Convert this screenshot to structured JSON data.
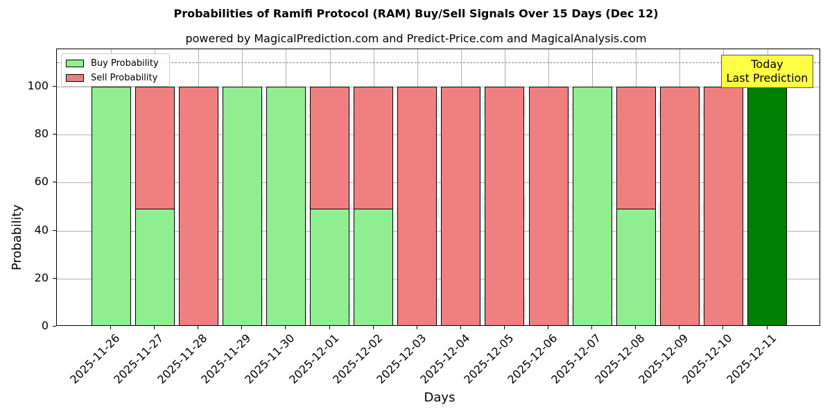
{
  "header": {
    "title": "Probabilities of Ramifi Protocol (RAM) Buy/Sell Signals Over 15 Days (Dec 12)",
    "subtitle": "powered by MagicalPrediction.com and Predict-Price.com and MagicalAnalysis.com"
  },
  "axes": {
    "xlabel": "Days",
    "ylabel": "Probability",
    "yticks": [
      "0",
      "20",
      "40",
      "60",
      "80",
      "100"
    ]
  },
  "legend": {
    "buy_label": "Buy Probability",
    "sell_label": "Sell Probability"
  },
  "annotation": {
    "line1": "Today",
    "line2": "Last Prediction"
  },
  "watermarks": {
    "left": "MagicalAnalysis.com",
    "right": "MagicalPrediction.com"
  },
  "colors": {
    "buy": "#90ee90",
    "sell": "#f08080",
    "today": "#008000",
    "annotation_bg": "#ffff44",
    "reference_line": "#808080"
  },
  "chart_data": {
    "type": "bar",
    "stacked": true,
    "title": "Probabilities of Ramifi Protocol (RAM) Buy/Sell Signals Over 15 Days (Dec 12)",
    "subtitle": "powered by MagicalPrediction.com and Predict-Price.com and MagicalAnalysis.com",
    "xlabel": "Days",
    "ylabel": "Probability",
    "ylim": [
      0,
      115
    ],
    "yticks": [
      0,
      20,
      40,
      60,
      80,
      100
    ],
    "grid": true,
    "legend_position": "upper left",
    "reference_line": {
      "y": 110,
      "style": "dashed",
      "color": "#808080"
    },
    "categories": [
      "2025-11-26",
      "2025-11-27",
      "2025-11-28",
      "2025-11-29",
      "2025-11-30",
      "2025-12-01",
      "2025-12-02",
      "2025-12-03",
      "2025-12-04",
      "2025-12-05",
      "2025-12-06",
      "2025-12-07",
      "2025-12-08",
      "2025-12-09",
      "2025-12-10",
      "2025-12-11"
    ],
    "series": [
      {
        "name": "Buy Probability",
        "color": "#90ee90",
        "values": [
          100,
          48.9,
          0,
          100,
          100,
          48.9,
          48.9,
          0,
          0,
          0,
          0,
          100,
          48.9,
          0,
          0,
          100
        ]
      },
      {
        "name": "Sell Probability",
        "color": "#f08080",
        "values": [
          0,
          51.1,
          100,
          0,
          0,
          51.1,
          51.1,
          100,
          100,
          100,
          100,
          0,
          51.1,
          100,
          100,
          0
        ]
      }
    ],
    "highlight": {
      "category": "2025-12-11",
      "color": "#008000",
      "label": "Today\nLast Prediction"
    }
  }
}
